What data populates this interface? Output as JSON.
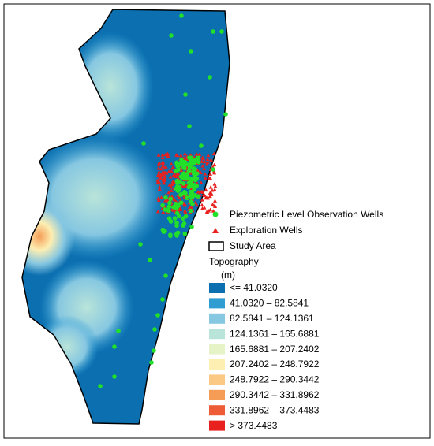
{
  "legend": {
    "wells": "Piezometric Level Observation Wells",
    "exploration": "Exploration Wells",
    "study_area": "Study Area",
    "topography": {
      "title": "Topography",
      "unit": "(m)",
      "classes": [
        {
          "label": "<= 41.0320",
          "color": "#0b6fb0"
        },
        {
          "label": "41.0320 – 82.5841",
          "color": "#2f9dd2"
        },
        {
          "label": "82.5841 – 124.1361",
          "color": "#86c7e1"
        },
        {
          "label": "124.1361 – 165.6881",
          "color": "#b9e4d9"
        },
        {
          "label": "165.6881 – 207.2402",
          "color": "#e6f3c6"
        },
        {
          "label": "207.2402 – 248.7922",
          "color": "#fdeeb2"
        },
        {
          "label": "248.7922 – 290.3442",
          "color": "#fbc983"
        },
        {
          "label": "290.3442 – 331.8962",
          "color": "#f59d57"
        },
        {
          "label": "331.8962 – 373.4483",
          "color": "#ee5c36"
        },
        {
          "label": "> 373.4483",
          "color": "#e8211f"
        }
      ]
    }
  }
}
